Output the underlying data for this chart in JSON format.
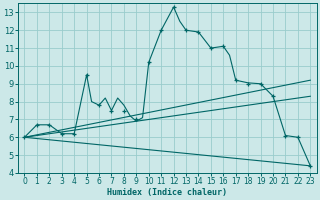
{
  "xlabel": "Humidex (Indice chaleur)",
  "bg_color": "#cce8e8",
  "grid_color": "#99cccc",
  "line_color": "#006666",
  "xlim": [
    0,
    23
  ],
  "ylim": [
    4,
    13.5
  ],
  "xticks": [
    0,
    1,
    2,
    3,
    4,
    5,
    6,
    7,
    8,
    9,
    10,
    11,
    12,
    13,
    14,
    15,
    16,
    17,
    18,
    19,
    20,
    21,
    22,
    23
  ],
  "yticks": [
    4,
    5,
    6,
    7,
    8,
    9,
    10,
    11,
    12,
    13
  ],
  "main_x": [
    0,
    1,
    2,
    3,
    4,
    5,
    5.4,
    6,
    6.5,
    7,
    7.5,
    8,
    8.5,
    9,
    9.5,
    10,
    11,
    12,
    12.5,
    13,
    14,
    15,
    16,
    16.5,
    17,
    18,
    19,
    20,
    21,
    22,
    23
  ],
  "main_y": [
    6.0,
    6.7,
    6.7,
    6.2,
    6.2,
    9.5,
    8.0,
    7.8,
    8.2,
    7.5,
    8.2,
    7.8,
    7.2,
    6.9,
    7.1,
    10.2,
    12.0,
    13.3,
    12.5,
    12.0,
    11.9,
    11.0,
    11.1,
    10.6,
    9.2,
    9.05,
    9.0,
    8.3,
    6.1,
    6.0,
    4.4
  ],
  "marker_x": [
    0,
    1,
    2,
    3,
    4,
    5,
    6,
    7,
    8,
    9,
    10,
    11,
    12,
    13,
    14,
    15,
    16,
    17,
    18,
    19,
    20,
    21,
    22,
    23
  ],
  "marker_y": [
    6.0,
    6.7,
    6.7,
    6.2,
    6.2,
    9.5,
    7.8,
    7.5,
    7.5,
    7.0,
    10.2,
    12.0,
    13.3,
    12.0,
    11.9,
    11.0,
    11.1,
    9.2,
    9.0,
    9.0,
    8.3,
    6.1,
    6.0,
    4.4
  ],
  "line1_x": [
    0,
    23
  ],
  "line1_y": [
    6.0,
    9.2
  ],
  "line2_x": [
    0,
    23
  ],
  "line2_y": [
    6.0,
    8.3
  ],
  "line3_x": [
    0,
    23
  ],
  "line3_y": [
    6.0,
    4.4
  ]
}
